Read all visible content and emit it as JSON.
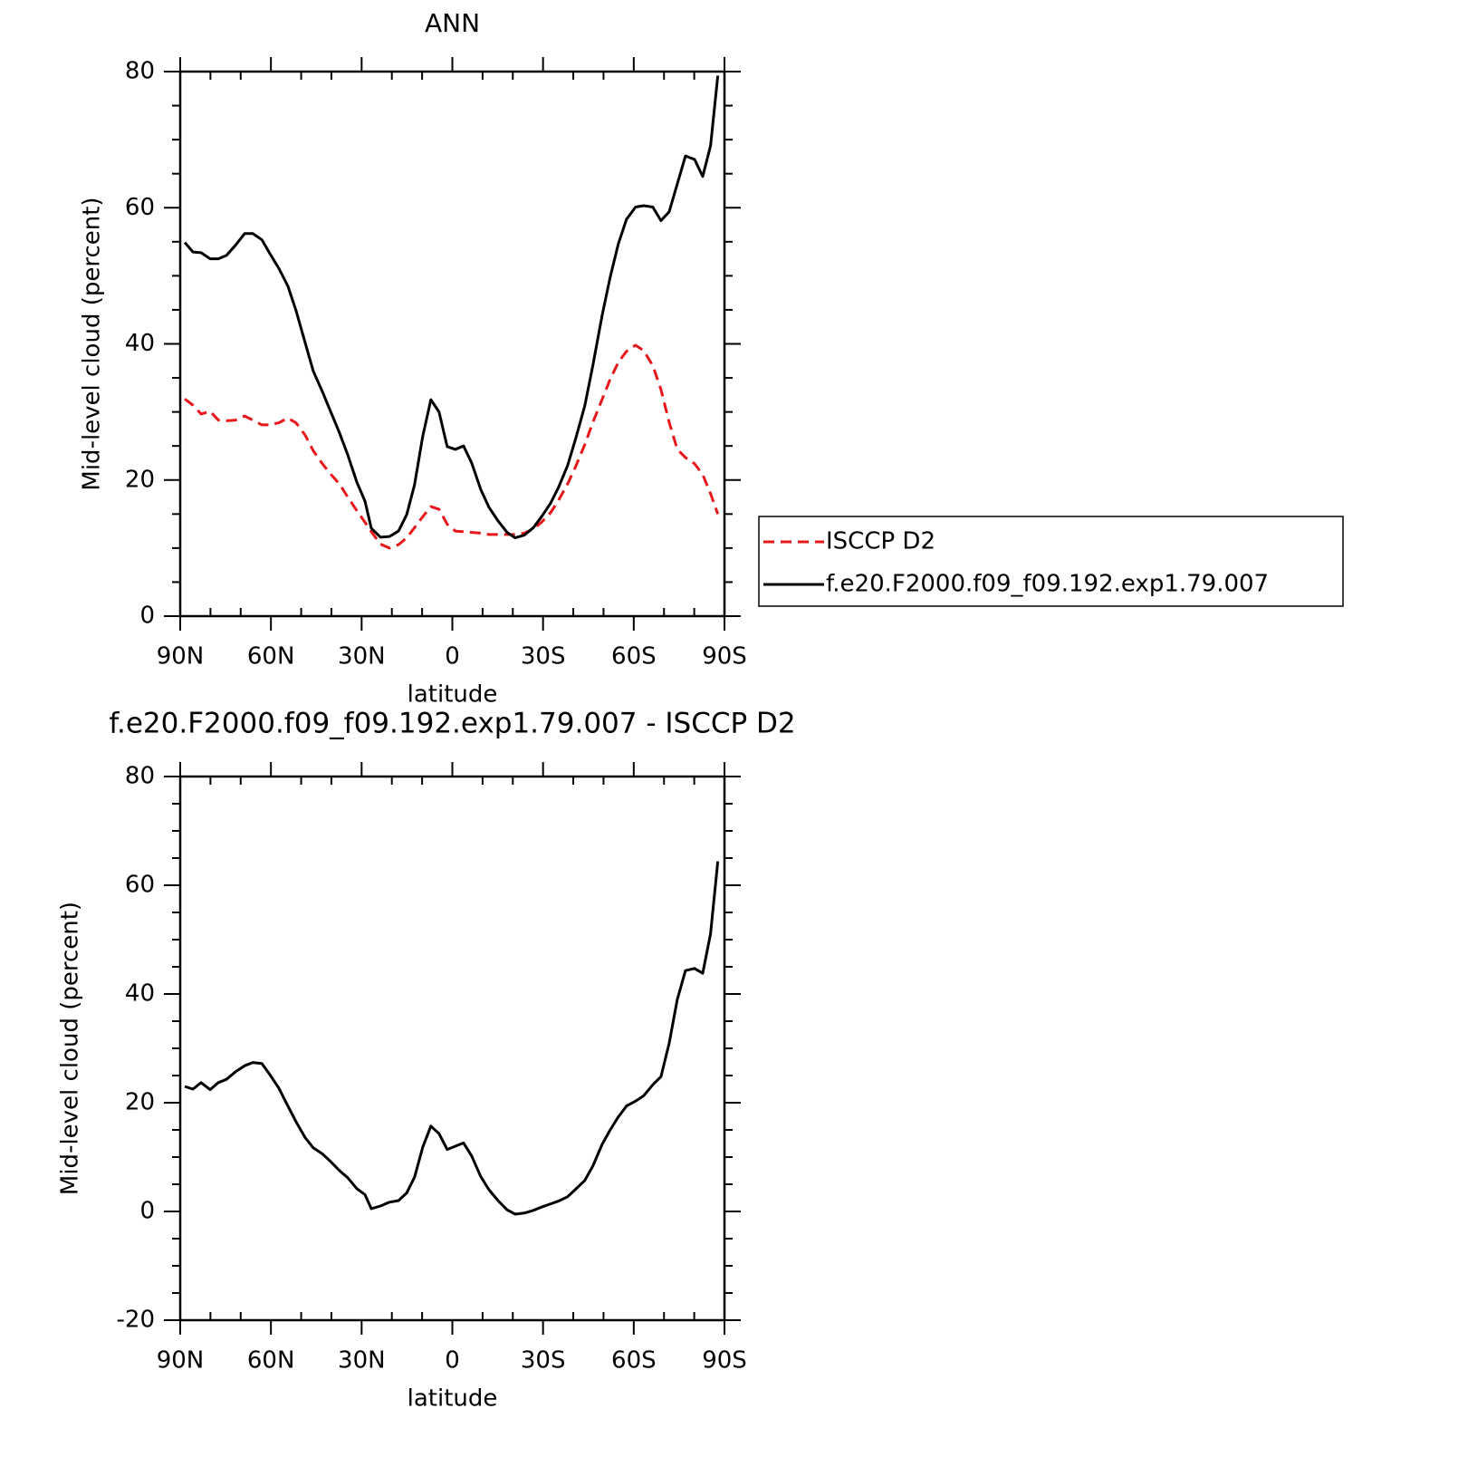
{
  "chart_data": [
    {
      "type": "line",
      "title": "ANN",
      "xlabel": "latitude",
      "ylabel": "Mid-level cloud (percent)",
      "x": [
        88.5,
        85.8,
        83.1,
        80.1,
        77.4,
        74.7,
        71.7,
        68.7,
        66,
        63,
        60.4,
        57.4,
        54.4,
        51.7,
        48.7,
        46,
        43,
        40.3,
        37.3,
        34.6,
        31.6,
        28.9,
        26.8,
        23.8,
        20.8,
        17.8,
        15.1,
        12.5,
        9.8,
        7.1,
        4.4,
        1.7,
        -1,
        -3.7,
        -6.4,
        -9.4,
        -12.1,
        -15.1,
        -18.1,
        -20.8,
        -23.8,
        -26.8,
        -29.5,
        -32.5,
        -35.1,
        -38.1,
        -40.8,
        -43.8,
        -46.5,
        -49.5,
        -52.2,
        -54.9,
        -57.6,
        -60.6,
        -63.3,
        -66.3,
        -69,
        -71.7,
        -74.4,
        -77.1,
        -80.1,
        -82.8,
        -85.4,
        -87.8
      ],
      "series": [
        {
          "name": "ISCCP D2",
          "color": "#e8171b",
          "dashed": true,
          "values": [
            31.9,
            31,
            29.7,
            30.1,
            28.8,
            28.7,
            28.8,
            29.4,
            28.8,
            28.1,
            28.1,
            28.4,
            29.1,
            28.4,
            26.6,
            24.3,
            22.4,
            20.9,
            19.4,
            17.5,
            15.5,
            13.8,
            12.4,
            10.6,
            10,
            10.5,
            11.5,
            13,
            14.6,
            16.1,
            15.7,
            13.5,
            12.5,
            12.4,
            12.3,
            12.2,
            12,
            12,
            12,
            12,
            12.2,
            12.8,
            13.8,
            15.2,
            17,
            19.4,
            22,
            25.2,
            28.5,
            31.8,
            34.8,
            37.3,
            38.9,
            39.8,
            39,
            36.8,
            33.3,
            28.5,
            24.5,
            23.3,
            22.4,
            20.8,
            18,
            15
          ]
        },
        {
          "name": "f.e20.F2000.f09_f09.192.exp1.79.007",
          "color": "#000000",
          "dashed": false,
          "values": [
            54.9,
            53.5,
            53.4,
            52.5,
            52.5,
            53,
            54.5,
            56.2,
            56.2,
            55.3,
            53.3,
            51.1,
            48.5,
            44.9,
            40.2,
            36,
            33,
            30.1,
            26.9,
            23.7,
            19.7,
            16.9,
            12.9,
            11.6,
            11.7,
            12.5,
            14.9,
            19.3,
            26.4,
            31.8,
            30,
            24.9,
            24.5,
            25,
            22.5,
            18.6,
            16,
            14,
            12.3,
            11.5,
            11.9,
            13,
            14.6,
            16.6,
            18.9,
            22.1,
            26.1,
            30.9,
            36.9,
            44.1,
            49.8,
            54.7,
            58.3,
            60.1,
            60.3,
            60.1,
            58.1,
            59.4,
            63.5,
            67.6,
            67.1,
            64.6,
            69.1,
            79.4
          ]
        }
      ],
      "xlim": [
        90,
        -90
      ],
      "xticks": [
        {
          "value": 90,
          "label": "90N"
        },
        {
          "value": 60,
          "label": "60N"
        },
        {
          "value": 30,
          "label": "30N"
        },
        0,
        {
          "value": -30,
          "label": "30S"
        },
        {
          "value": -60,
          "label": "60S"
        },
        {
          "value": -90,
          "label": "90S"
        }
      ],
      "xminorticks": [
        80,
        70,
        50,
        40,
        20,
        10,
        -10,
        -20,
        -40,
        -50,
        -70,
        -80
      ],
      "ylim": [
        0,
        80
      ],
      "yticks": [
        0,
        20,
        40,
        60,
        80
      ],
      "yminorticks": [
        5,
        10,
        15,
        25,
        30,
        35,
        45,
        50,
        55,
        65,
        70,
        75
      ],
      "legend": "right"
    },
    {
      "type": "line",
      "title": "f.e20.F2000.f09_f09.192.exp1.79.007 - ISCCP D2",
      "xlabel": "latitude",
      "ylabel": "Mid-level cloud (percent)",
      "x": [
        88.5,
        85.8,
        83.1,
        80.1,
        77.4,
        74.7,
        71.7,
        68.7,
        66,
        63,
        60.4,
        57.4,
        54.4,
        51.7,
        48.7,
        46,
        43,
        40.3,
        37.3,
        34.6,
        31.6,
        28.9,
        26.8,
        23.8,
        20.8,
        17.8,
        15.1,
        12.5,
        9.8,
        7.1,
        4.4,
        1.7,
        -1,
        -3.7,
        -6.4,
        -9.4,
        -12.1,
        -15.1,
        -18.1,
        -20.8,
        -23.8,
        -26.8,
        -29.5,
        -32.5,
        -35.1,
        -38.1,
        -40.8,
        -43.8,
        -46.5,
        -49.5,
        -52.2,
        -54.9,
        -57.6,
        -60.6,
        -63.3,
        -66.3,
        -69,
        -71.7,
        -74.4,
        -77.1,
        -80.1,
        -82.8,
        -85.4,
        -87.8
      ],
      "values": [
        23,
        22.5,
        23.7,
        22.4,
        23.7,
        24.3,
        25.7,
        26.8,
        27.4,
        27.2,
        25.2,
        22.7,
        19.4,
        16.5,
        13.6,
        11.7,
        10.6,
        9.2,
        7.5,
        6.2,
        4.2,
        3.1,
        0.5,
        1,
        1.7,
        2,
        3.4,
        6.3,
        11.8,
        15.7,
        14.3,
        11.4,
        12,
        12.6,
        10.2,
        6.4,
        4,
        2,
        0.3,
        -0.5,
        -0.3,
        0.2,
        0.8,
        1.4,
        1.9,
        2.7,
        4.1,
        5.7,
        8.4,
        12.3,
        15,
        17.4,
        19.4,
        20.3,
        21.3,
        23.3,
        24.8,
        30.9,
        39,
        44.3,
        44.7,
        43.8,
        51.1,
        64.4
      ],
      "color": "#000000",
      "xlim": [
        90,
        -90
      ],
      "xticks": [
        {
          "value": 90,
          "label": "90N"
        },
        {
          "value": 60,
          "label": "60N"
        },
        {
          "value": 30,
          "label": "30N"
        },
        0,
        {
          "value": -30,
          "label": "30S"
        },
        {
          "value": -60,
          "label": "60S"
        },
        {
          "value": -90,
          "label": "90S"
        }
      ],
      "xminorticks": [
        80,
        70,
        50,
        40,
        20,
        10,
        -10,
        -20,
        -40,
        -50,
        -70,
        -80
      ],
      "ylim": [
        -20,
        80
      ],
      "yticks": [
        -20,
        0,
        20,
        40,
        60,
        80
      ],
      "yminorticks": [
        -15,
        -10,
        -5,
        5,
        10,
        15,
        25,
        30,
        35,
        45,
        50,
        55,
        65,
        70,
        75
      ]
    }
  ]
}
